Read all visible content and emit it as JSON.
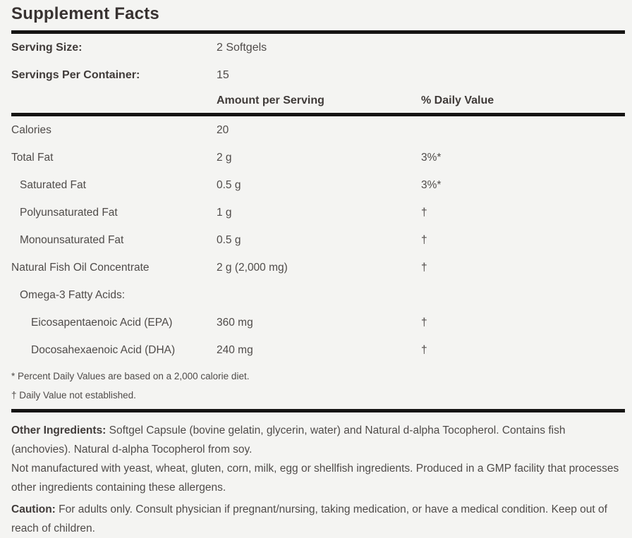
{
  "label": {
    "title": "Supplement Facts",
    "serving_info": [
      {
        "label": "Serving Size:",
        "value": "2 Softgels"
      },
      {
        "label": "Servings Per Container:",
        "value": "15"
      }
    ],
    "columns": {
      "amount": "Amount per Serving",
      "daily_value": "% Daily Value"
    },
    "nutrients": [
      {
        "name": "Calories",
        "amount": "20",
        "dv": ""
      },
      {
        "name": "Total Fat",
        "amount": "2 g",
        "dv": "3%*"
      },
      {
        "name": "Saturated Fat",
        "amount": "0.5 g",
        "dv": "3%*"
      },
      {
        "name": "Polyunsaturated Fat",
        "amount": "1 g",
        "dv": "†"
      },
      {
        "name": "Monounsaturated Fat",
        "amount": "0.5 g",
        "dv": "†"
      },
      {
        "name": "Natural Fish Oil Concentrate",
        "amount": "2 g (2,000 mg)",
        "dv": "†"
      },
      {
        "name": "Omega-3 Fatty Acids:",
        "amount": "",
        "dv": ""
      },
      {
        "name": "Eicosapentaenoic Acid (EPA)",
        "amount": "360 mg",
        "dv": "†"
      },
      {
        "name": "Docosahexaenoic Acid (DHA)",
        "amount": "240 mg",
        "dv": "†"
      }
    ],
    "footnotes": [
      "* Percent Daily Values are based on a 2,000 calorie diet.",
      "† Daily Value not established."
    ],
    "paragraphs": [
      {
        "bold": "Other Ingredients:",
        "text": "  Softgel Capsule (bovine gelatin, glycerin, water) and Natural d-alpha Tocopherol. Contains fish (anchovies). Natural d-alpha Tocopherol from soy."
      },
      {
        "bold": "",
        "text": "Not manufactured with yeast, wheat, gluten, corn, milk, egg or shellfish ingredients. Produced in a GMP facility that processes other ingredients containing these allergens."
      },
      {
        "bold": "Caution:",
        "text": " For adults only. Consult physician if pregnant/nursing, taking medication, or have a medical condition. Keep out of reach of children."
      }
    ],
    "colors": {
      "background": "#f4f4f2",
      "title_text": "#383231",
      "body_text": "#4f4b49",
      "rule": "#151413"
    }
  }
}
